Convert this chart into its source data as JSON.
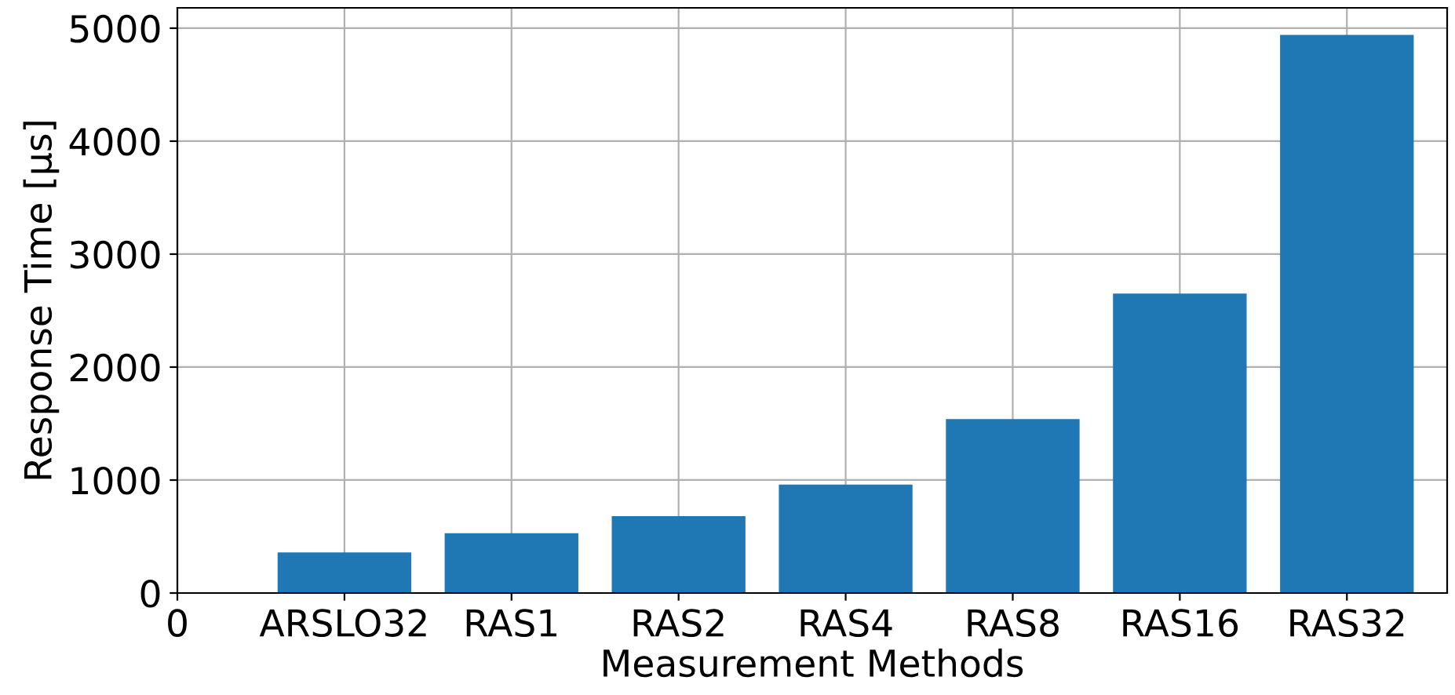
{
  "chart_data": {
    "type": "bar",
    "xlabel": "Measurement Methods",
    "ylabel": "Response Time [μs]",
    "categories": [
      "0",
      "ARSLO32",
      "RAS1",
      "RAS2",
      "RAS4",
      "RAS8",
      "RAS16",
      "RAS32"
    ],
    "values": [
      null,
      360,
      530,
      680,
      960,
      1540,
      2650,
      4940
    ],
    "color": "#1f77b4",
    "ylim": [
      0,
      5180
    ],
    "yticks": [
      0,
      1000,
      2000,
      3000,
      4000,
      5000
    ],
    "grid": true
  }
}
